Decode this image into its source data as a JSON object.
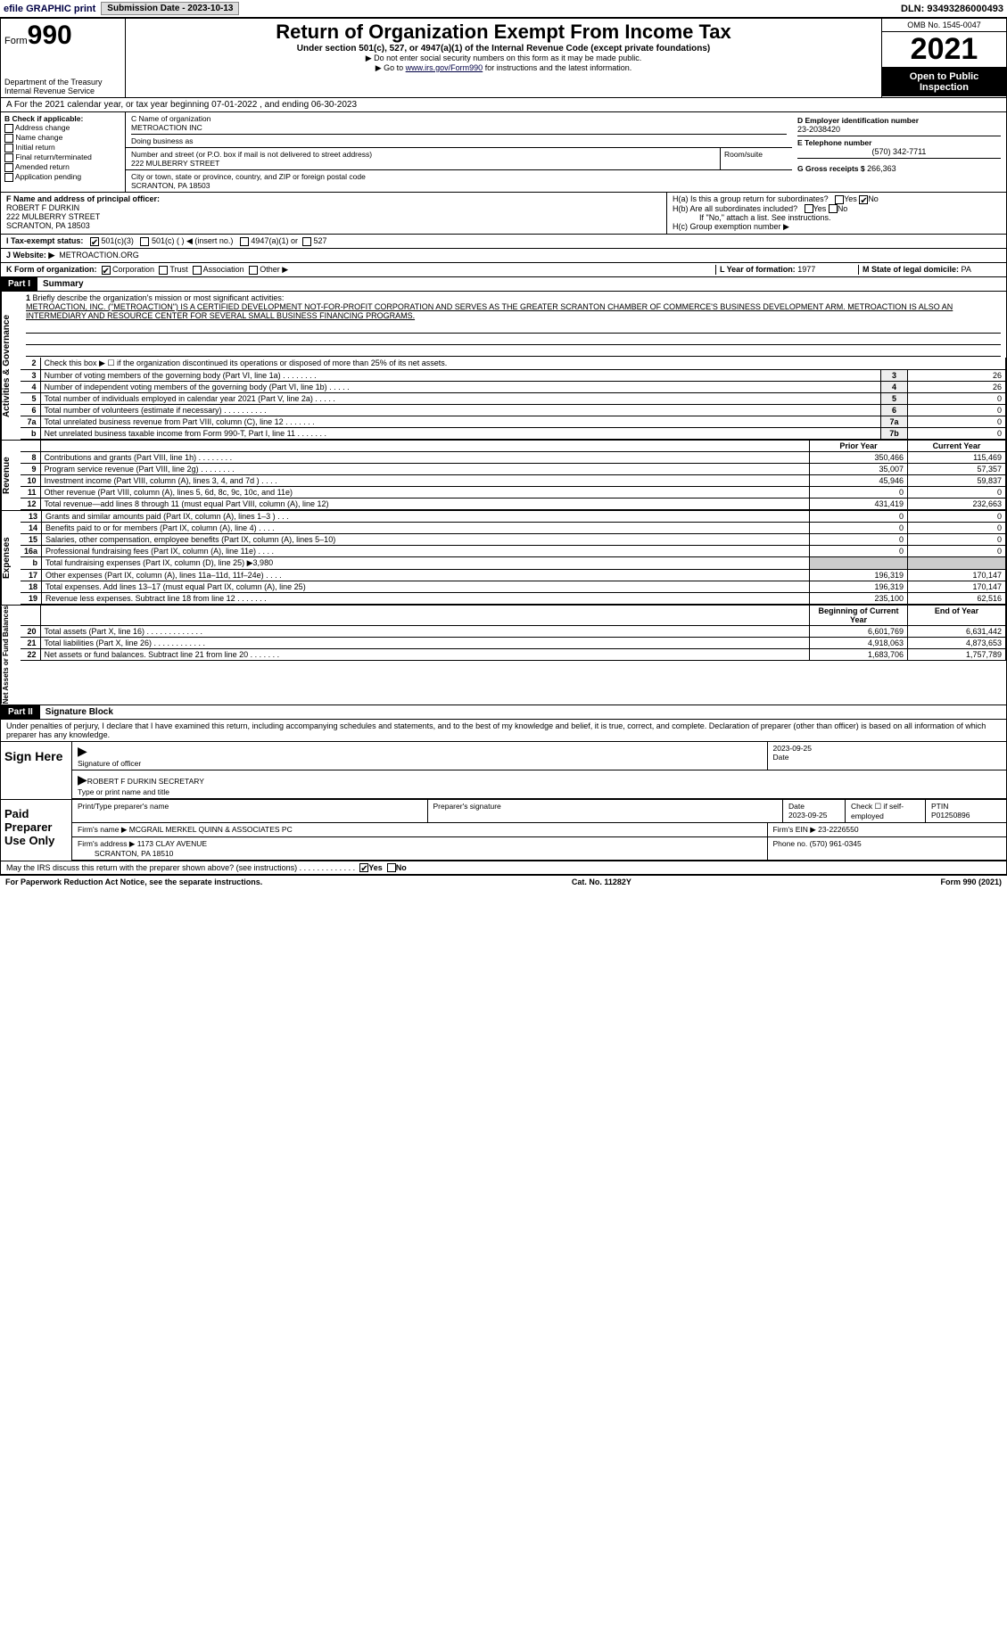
{
  "topbar": {
    "efile": "efile GRAPHIC print",
    "sub_lbl": "Submission Date - 2023-10-13",
    "dln": "DLN: 93493286000493"
  },
  "header": {
    "form_prefix": "Form",
    "form_num": "990",
    "dept": "Department of the Treasury\nInternal Revenue Service",
    "title": "Return of Organization Exempt From Income Tax",
    "sub": "Under section 501(c), 527, or 4947(a)(1) of the Internal Revenue Code (except private foundations)",
    "note1": "▶ Do not enter social security numbers on this form as it may be made public.",
    "note2_pre": "▶ Go to ",
    "note2_link": "www.irs.gov/Form990",
    "note2_post": " for instructions and the latest information.",
    "omb": "OMB No. 1545-0047",
    "year": "2021",
    "open": "Open to Public Inspection"
  },
  "row_a": "A For the 2021 calendar year, or tax year beginning 07-01-2022   , and ending 06-30-2023",
  "col_b": {
    "hdr": "B Check if applicable:",
    "opts": [
      "Address change",
      "Name change",
      "Initial return",
      "Final return/terminated",
      "Amended return",
      "Application pending"
    ]
  },
  "col_c": {
    "name_lbl": "C Name of organization",
    "name": "METROACTION INC",
    "dba_lbl": "Doing business as",
    "addr_lbl": "Number and street (or P.O. box if mail is not delivered to street address)",
    "room_lbl": "Room/suite",
    "addr": "222 MULBERRY STREET",
    "city_lbl": "City or town, state or province, country, and ZIP or foreign postal code",
    "city": "SCRANTON, PA  18503"
  },
  "col_d": {
    "ein_lbl": "D Employer identification number",
    "ein": "23-2038420",
    "tel_lbl": "E Telephone number",
    "tel": "(570) 342-7711",
    "gross_lbl": "G Gross receipts $",
    "gross": "266,363"
  },
  "f": {
    "lbl": "F Name and address of principal officer:",
    "name": "ROBERT F DURKIN",
    "addr": "222 MULBERRY STREET",
    "city": "SCRANTON, PA  18503"
  },
  "h": {
    "a_lbl": "H(a)  Is this a group return for subordinates?",
    "b_lbl": "H(b)  Are all subordinates included?",
    "b_note": "If \"No,\" attach a list. See instructions.",
    "c_lbl": "H(c)  Group exemption number ▶",
    "yes": "Yes",
    "no": "No"
  },
  "i": {
    "lbl": "I Tax-exempt status:",
    "o1": "501(c)(3)",
    "o2": "501(c) (  ) ◀ (insert no.)",
    "o3": "4947(a)(1) or",
    "o4": "527"
  },
  "j": {
    "lbl": "J Website: ▶",
    "val": "METROACTION.ORG"
  },
  "k": {
    "lbl": "K Form of organization:",
    "o1": "Corporation",
    "o2": "Trust",
    "o3": "Association",
    "o4": "Other ▶"
  },
  "l": {
    "lbl": "L Year of formation:",
    "val": "1977"
  },
  "m": {
    "lbl": "M State of legal domicile:",
    "val": "PA"
  },
  "part1": {
    "hdr": "Part I",
    "title": "Summary"
  },
  "mission": {
    "num": "1",
    "lbl": "Briefly describe the organization's mission or most significant activities:",
    "text": "METROACTION, INC. (\"METROACTION\") IS A CERTIFIED DEVELOPMENT NOT-FOR-PROFIT CORPORATION AND SERVES AS THE GREATER SCRANTON CHAMBER OF COMMERCE'S BUSINESS DEVELOPMENT ARM. METROACTION IS ALSO AN INTERMEDIARY AND RESOURCE CENTER FOR SEVERAL SMALL BUSINESS FINANCING PROGRAMS."
  },
  "gov_side": "Activities & Governance",
  "gov_rows": [
    {
      "n": "2",
      "t": "Check this box ▶ ☐ if the organization discontinued its operations or disposed of more than 25% of its net assets."
    },
    {
      "n": "3",
      "t": "Number of voting members of the governing body (Part VI, line 1a)   .    .    .    .    .    .    .    .",
      "b": "3",
      "v": "26"
    },
    {
      "n": "4",
      "t": "Number of independent voting members of the governing body (Part VI, line 1b)   .    .    .    .    .",
      "b": "4",
      "v": "26"
    },
    {
      "n": "5",
      "t": "Total number of individuals employed in calendar year 2021 (Part V, line 2a)   .    .    .    .    .",
      "b": "5",
      "v": "0"
    },
    {
      "n": "6",
      "t": "Total number of volunteers (estimate if necessary)   .    .    .    .    .    .    .    .    .    .",
      "b": "6",
      "v": "0"
    },
    {
      "n": "7a",
      "t": "Total unrelated business revenue from Part VIII, column (C), line 12   .    .    .    .    .    .    .",
      "b": "7a",
      "v": "0"
    },
    {
      "n": "b",
      "t": "Net unrelated business taxable income from Form 990-T, Part I, line 11   .    .    .    .    .    .    .",
      "b": "7b",
      "v": "0"
    }
  ],
  "rev_side": "Revenue",
  "rev_hdr": {
    "py": "Prior Year",
    "cy": "Current Year"
  },
  "rev_rows": [
    {
      "n": "8",
      "t": "Contributions and grants (Part VIII, line 1h)   .    .    .    .    .    .    .    .",
      "py": "350,466",
      "cy": "115,469"
    },
    {
      "n": "9",
      "t": "Program service revenue (Part VIII, line 2g)   .    .    .    .    .    .    .    .",
      "py": "35,007",
      "cy": "57,357"
    },
    {
      "n": "10",
      "t": "Investment income (Part VIII, column (A), lines 3, 4, and 7d )   .    .    .    .",
      "py": "45,946",
      "cy": "59,837"
    },
    {
      "n": "11",
      "t": "Other revenue (Part VIII, column (A), lines 5, 6d, 8c, 9c, 10c, and 11e)",
      "py": "0",
      "cy": "0"
    },
    {
      "n": "12",
      "t": "Total revenue—add lines 8 through 11 (must equal Part VIII, column (A), line 12)",
      "py": "431,419",
      "cy": "232,663"
    }
  ],
  "exp_side": "Expenses",
  "exp_rows": [
    {
      "n": "13",
      "t": "Grants and similar amounts paid (Part IX, column (A), lines 1–3 )   .    .    .",
      "py": "0",
      "cy": "0"
    },
    {
      "n": "14",
      "t": "Benefits paid to or for members (Part IX, column (A), line 4)   .    .    .    .",
      "py": "0",
      "cy": "0"
    },
    {
      "n": "15",
      "t": "Salaries, other compensation, employee benefits (Part IX, column (A), lines 5–10)",
      "py": "0",
      "cy": "0"
    },
    {
      "n": "16a",
      "t": "Professional fundraising fees (Part IX, column (A), line 11e)   .    .    .    .",
      "py": "0",
      "cy": "0"
    },
    {
      "n": "b",
      "t": "Total fundraising expenses (Part IX, column (D), line 25) ▶3,980",
      "py": "",
      "cy": ""
    },
    {
      "n": "17",
      "t": "Other expenses (Part IX, column (A), lines 11a–11d, 11f–24e)   .    .    .    .",
      "py": "196,319",
      "cy": "170,147"
    },
    {
      "n": "18",
      "t": "Total expenses. Add lines 13–17 (must equal Part IX, column (A), line 25)",
      "py": "196,319",
      "cy": "170,147"
    },
    {
      "n": "19",
      "t": "Revenue less expenses. Subtract line 18 from line 12   .    .    .    .    .    .    .",
      "py": "235,100",
      "cy": "62,516"
    }
  ],
  "na_side": "Net Assets or Fund Balances",
  "na_hdr": {
    "py": "Beginning of Current Year",
    "cy": "End of Year"
  },
  "na_rows": [
    {
      "n": "20",
      "t": "Total assets (Part X, line 16)   .    .    .    .    .    .    .    .    .    .    .    .    .",
      "py": "6,601,769",
      "cy": "6,631,442"
    },
    {
      "n": "21",
      "t": "Total liabilities (Part X, line 26)   .    .    .    .    .    .    .    .    .    .    .    .",
      "py": "4,918,063",
      "cy": "4,873,653"
    },
    {
      "n": "22",
      "t": "Net assets or fund balances. Subtract line 21 from line 20   .    .    .    .    .    .    .",
      "py": "1,683,706",
      "cy": "1,757,789"
    }
  ],
  "part2": {
    "hdr": "Part II",
    "title": "Signature Block"
  },
  "sig_decl": "Under penalties of perjury, I declare that I have examined this return, including accompanying schedules and statements, and to the best of my knowledge and belief, it is true, correct, and complete. Declaration of preparer (other than officer) is based on all information of which preparer has any knowledge.",
  "sign": {
    "here": "Sign Here",
    "sig_of": "Signature of officer",
    "date": "2023-09-25",
    "date_lbl": "Date",
    "name": "ROBERT F DURKIN  SECRETARY",
    "name_lbl": "Type or print name and title"
  },
  "paid": {
    "lbl": "Paid Preparer Use Only",
    "c1": "Print/Type preparer's name",
    "c2": "Preparer's signature",
    "c3": "Date",
    "c3v": "2023-09-25",
    "c4": "Check ☐ if self-employed",
    "c5": "PTIN",
    "c5v": "P01250896",
    "firm_lbl": "Firm's name  ▶",
    "firm": "MCGRAIL MERKEL QUINN & ASSOCIATES PC",
    "ein_lbl": "Firm's EIN ▶",
    "ein": "23-2226550",
    "addr_lbl": "Firm's address ▶",
    "addr": "1173 CLAY AVENUE",
    "city": "SCRANTON, PA  18510",
    "ph_lbl": "Phone no.",
    "ph": "(570) 961-0345"
  },
  "discuss": "May the IRS discuss this return with the preparer shown above? (see instructions)   .    .    .    .    .    .    .    .    .    .    .    .    .",
  "footer": {
    "l": "For Paperwork Reduction Act Notice, see the separate instructions.",
    "c": "Cat. No. 11282Y",
    "r": "Form 990 (2021)"
  }
}
